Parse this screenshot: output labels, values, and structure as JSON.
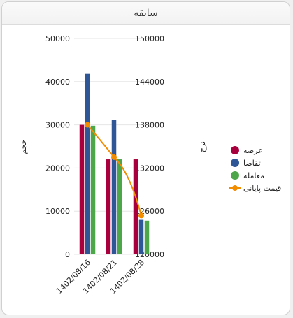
{
  "header": {
    "title": "سابقه"
  },
  "chart_data": {
    "type": "bar",
    "categories": [
      "1402/08/16",
      "1402/08/21",
      "1402/08/28"
    ],
    "series": [
      {
        "name": "عرضه",
        "type": "bar",
        "axis": "left",
        "color": "#a8003c",
        "values": [
          30000,
          22000,
          22000
        ]
      },
      {
        "name": "تقاضا",
        "type": "bar",
        "axis": "left",
        "color": "#2f5797",
        "values": [
          41800,
          31200,
          8000
        ]
      },
      {
        "name": "معامله",
        "type": "bar",
        "axis": "left",
        "color": "#4ea64a",
        "values": [
          29800,
          22000,
          7800
        ]
      },
      {
        "name": "قیمت پایانی",
        "type": "line",
        "axis": "right",
        "color": "#f28c00",
        "values": [
          138000,
          133500,
          125400
        ]
      }
    ],
    "left_axis": {
      "label": "حجم",
      "range": [
        0,
        50000
      ],
      "ticks": [
        "0",
        "10000",
        "20000",
        "30000",
        "40000",
        "50000"
      ]
    },
    "right_axis": {
      "label": "نرخ",
      "range": [
        120000,
        150000
      ],
      "ticks": [
        "120000",
        "126000",
        "132000",
        "138000",
        "144000",
        "150000"
      ]
    },
    "grid": true,
    "legend_position": "right"
  }
}
